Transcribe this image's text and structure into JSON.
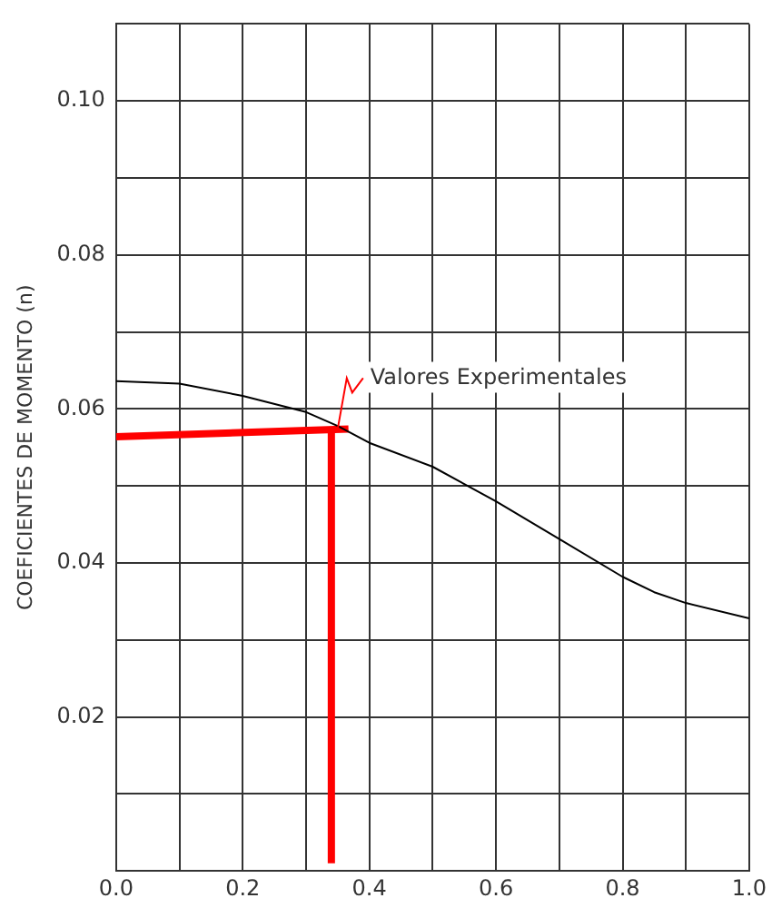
{
  "chart_data": {
    "type": "line",
    "ylabel": "COEFICIENTES DE MOMENTO (n)",
    "xlim": [
      0,
      1
    ],
    "ylim": [
      0,
      0.11
    ],
    "xticks": [
      {
        "value": 0,
        "label": "0.0"
      },
      {
        "value": 0.1,
        "label": null
      },
      {
        "value": 0.2,
        "label": "0.2"
      },
      {
        "value": 0.3,
        "label": null
      },
      {
        "value": 0.4,
        "label": "0.4"
      },
      {
        "value": 0.5,
        "label": null
      },
      {
        "value": 0.6,
        "label": "0.6"
      },
      {
        "value": 0.7,
        "label": null
      },
      {
        "value": 0.8,
        "label": "0.8"
      },
      {
        "value": 0.9,
        "label": null
      },
      {
        "value": 1,
        "label": "1.0"
      }
    ],
    "yticks": [
      {
        "value": 0.01,
        "label": null
      },
      {
        "value": 0.02,
        "label": "0.02"
      },
      {
        "value": 0.03,
        "label": null
      },
      {
        "value": 0.04,
        "label": "0.04"
      },
      {
        "value": 0.05,
        "label": null
      },
      {
        "value": 0.06,
        "label": "0.06"
      },
      {
        "value": 0.07,
        "label": null
      },
      {
        "value": 0.08,
        "label": "0.08"
      },
      {
        "value": 0.09,
        "label": null
      },
      {
        "value": 0.1,
        "label": "0.10"
      },
      {
        "value": 0.11,
        "label": null
      }
    ],
    "grid": true,
    "legend": false,
    "marker": "none",
    "line_style": "solid",
    "series": [
      {
        "color": "#000000",
        "x": [
          0,
          0.1,
          0.2,
          0.3,
          0.35,
          0.4,
          0.5,
          0.6,
          0.7,
          0.8,
          0.85,
          0.9,
          1
        ],
        "values": [
          0.0636,
          0.0633,
          0.0617,
          0.0596,
          0.0578,
          0.0556,
          0.0525,
          0.048,
          0.0431,
          0.0382,
          0.0362,
          0.0348,
          0.0328
        ]
      },
      {
        "color": "#ff0000",
        "x": [
          0,
          0.367
        ],
        "values": [
          0.0564,
          0.0574
        ]
      },
      {
        "color": "#ff0000",
        "x": [
          0.34,
          0.34
        ],
        "values": [
          0.001,
          0.0574
        ]
      }
    ],
    "annotations": [
      {
        "text": "Valores Experimentales",
        "x": 0.35,
        "y": 0.0574
      }
    ]
  }
}
